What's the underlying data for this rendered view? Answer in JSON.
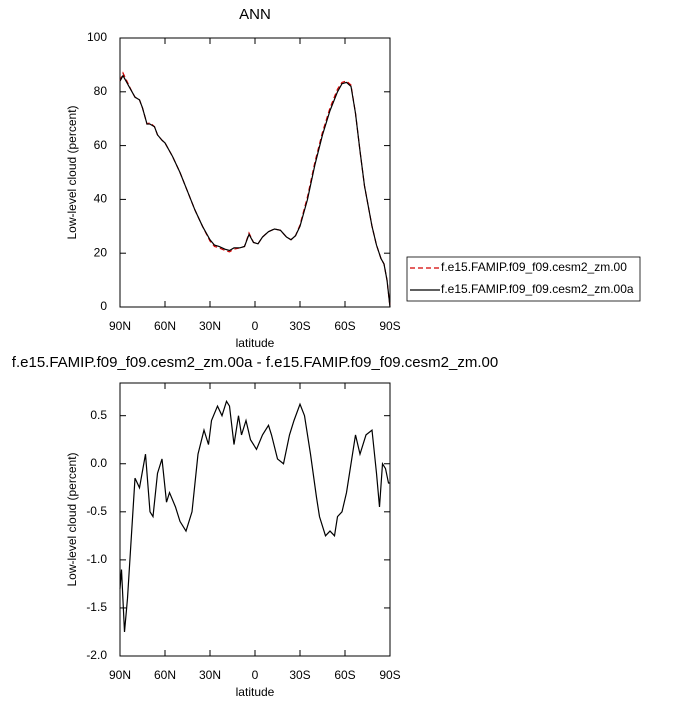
{
  "chart_data": [
    {
      "type": "line",
      "title": "ANN",
      "xlabel": "latitude",
      "ylabel": "Low-level cloud (percent)",
      "x": [
        90,
        88,
        85,
        82,
        80,
        77,
        75,
        72,
        70,
        67,
        65,
        62,
        60,
        57,
        55,
        50,
        45,
        40,
        35,
        30,
        27,
        24,
        20,
        17,
        14,
        10,
        7,
        4,
        1,
        -2,
        -5,
        -9,
        -13,
        -17,
        -21,
        -24,
        -27,
        -30,
        -35,
        -40,
        -45,
        -50,
        -55,
        -58,
        -61,
        -64,
        -67,
        -70,
        -73,
        -76,
        -78,
        -81,
        -84,
        -86,
        -88,
        -90
      ],
      "series": [
        {
          "name": "f.e15.FAMIP.f09_f09.cesm2_zm.00",
          "color": "#d40000",
          "dash": true,
          "values": [
            84,
            87,
            83.5,
            80,
            78,
            77,
            74,
            68,
            68.5,
            67,
            64,
            62,
            61,
            58,
            56,
            50,
            43,
            36,
            30,
            24.5,
            22.5,
            22,
            21,
            20.5,
            21.5,
            22,
            22.5,
            27.5,
            24,
            23.5,
            26,
            28,
            29,
            28.5,
            26,
            25,
            26.5,
            30.5,
            41,
            54,
            65,
            74,
            81,
            83.5,
            84,
            82.5,
            72,
            58,
            45,
            36,
            30,
            23,
            18,
            16,
            10,
            0
          ]
        },
        {
          "name": "f.e15.FAMIP.f09_f09.cesm2_zm.00a",
          "color": "#000000",
          "dash": false,
          "values": [
            84,
            86,
            83,
            80,
            78,
            77,
            74,
            68,
            68,
            67,
            64,
            62,
            61,
            58,
            56,
            50,
            43,
            36,
            30,
            25,
            23,
            22.5,
            21.5,
            21,
            22,
            22,
            22.5,
            27,
            24,
            23.5,
            26,
            28,
            29,
            28.5,
            26,
            25,
            26.5,
            30,
            40,
            53,
            64,
            73,
            80,
            83,
            83.5,
            82,
            72,
            58,
            45,
            36,
            30,
            23,
            18,
            16,
            10,
            0
          ]
        }
      ],
      "xlim": [
        90,
        -90
      ],
      "xticks": [
        {
          "value": 90,
          "label": "90N"
        },
        {
          "value": 60,
          "label": "60N"
        },
        {
          "value": 30,
          "label": "30N"
        },
        0,
        {
          "value": -30,
          "label": "30S"
        },
        {
          "value": -60,
          "label": "60S"
        },
        {
          "value": -90,
          "label": "90S"
        }
      ],
      "ylim": [
        0,
        100
      ],
      "yticks": [
        0,
        20,
        40,
        60,
        80,
        100
      ],
      "legend": "right"
    },
    {
      "type": "line",
      "title": "f.e15.FAMIP.f09_f09.cesm2_zm.00a - f.e15.FAMIP.f09_f09.cesm2_zm.00",
      "xlabel": "latitude",
      "ylabel": "Low-level cloud (percent)",
      "x": [
        90,
        89,
        87,
        85,
        83,
        80,
        77,
        73,
        70,
        68,
        65,
        62,
        59,
        57,
        53,
        50,
        46,
        42,
        38,
        34,
        31,
        29,
        25,
        22,
        19,
        17,
        14,
        11,
        9,
        6,
        3,
        -1,
        -5,
        -9,
        -11,
        -15,
        -19,
        -23,
        -26,
        -30,
        -33,
        -37,
        -41,
        -43,
        -47,
        -50,
        -53,
        -55,
        -58,
        -61,
        -63,
        -67,
        -70,
        -74,
        -78,
        -81,
        -83,
        -85,
        -87,
        -89,
        -90
      ],
      "series": [
        {
          "color": "#000000",
          "dash": false,
          "values": [
            -1.3,
            -1.1,
            -1.75,
            -1.4,
            -0.9,
            -0.15,
            -0.25,
            0.1,
            -0.5,
            -0.55,
            -0.1,
            0.05,
            -0.4,
            -0.3,
            -0.45,
            -0.6,
            -0.7,
            -0.5,
            0.1,
            0.35,
            0.2,
            0.45,
            0.6,
            0.5,
            0.65,
            0.6,
            0.2,
            0.5,
            0.3,
            0.45,
            0.25,
            0.15,
            0.3,
            0.4,
            0.3,
            0.05,
            0.0,
            0.3,
            0.45,
            0.62,
            0.5,
            0.1,
            -0.35,
            -0.55,
            -0.75,
            -0.7,
            -0.75,
            -0.55,
            -0.5,
            -0.3,
            -0.1,
            0.3,
            0.1,
            0.3,
            0.35,
            -0.1,
            -0.45,
            0.0,
            -0.05,
            -0.2,
            -0.2
          ]
        }
      ],
      "xlim": [
        90,
        -90
      ],
      "xticks": [
        {
          "value": 90,
          "label": "90N"
        },
        {
          "value": 60,
          "label": "60N"
        },
        {
          "value": 30,
          "label": "30N"
        },
        0,
        {
          "value": -30,
          "label": "30S"
        },
        {
          "value": -60,
          "label": "60S"
        },
        {
          "value": -90,
          "label": "90S"
        }
      ],
      "ylim": [
        -2.0,
        0.84
      ],
      "yticks": [
        {
          "value": -2,
          "label": "-2.0"
        },
        -1.5,
        {
          "value": -1,
          "label": "-1.0"
        },
        -0.5,
        {
          "value": 0,
          "label": "0.0"
        },
        0.5
      ]
    }
  ]
}
